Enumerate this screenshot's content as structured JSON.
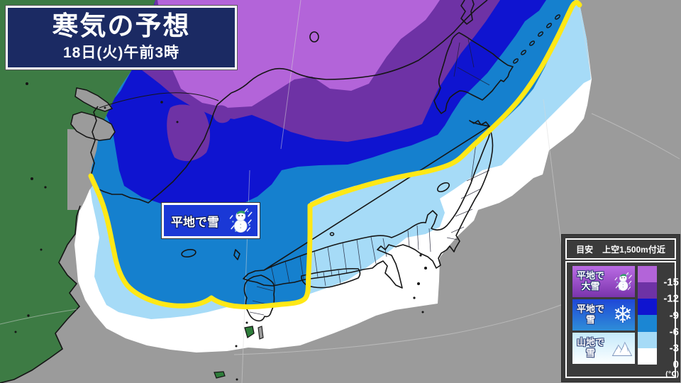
{
  "title": {
    "heading": "寒気の予想",
    "datetime": "18日(火)午前3時"
  },
  "map_label": {
    "text": "平地で雪",
    "icon": "snowman-icon"
  },
  "legend": {
    "header": {
      "left": "目安",
      "right": "上空1,500m付近"
    },
    "categories": [
      {
        "line1": "平地で",
        "line2": "大雪",
        "icon": "snowman-icon",
        "grad_top": "#bb6ce4",
        "grad_bottom": "#7a34ac"
      },
      {
        "line1": "平地で",
        "line2": "雪",
        "icon": "snowflake-icon",
        "grad_top": "#1f47d8",
        "grad_bottom": "#2e8ed8"
      },
      {
        "line1": "山地で",
        "line2": "雪",
        "icon": "mountain-icon",
        "grad_top": "#c4e9fb",
        "grad_bottom": "#fdffff"
      }
    ],
    "scale": {
      "values": [
        "-15",
        "-12",
        "-9",
        "-6",
        "-3",
        "0"
      ],
      "unit": "(℃)",
      "colors": [
        "#b364d9",
        "#6e32a5",
        "#0f14d0",
        "#1b86d3",
        "#a6dbf7",
        "#ffffff"
      ]
    }
  },
  "map": {
    "colors": {
      "sea_gray": "#9b9b9b",
      "land_green": "#3d7b44",
      "white_band": "#ffffff",
      "light_blue": "#a6dbf7",
      "medium_blue": "#1580ce",
      "dark_blue": "#0f14d0",
      "dark_purple": "#6e32a5",
      "light_purple": "#b364d9",
      "snow_line_yellow": "#ffe816",
      "coastline": "#151515"
    }
  }
}
